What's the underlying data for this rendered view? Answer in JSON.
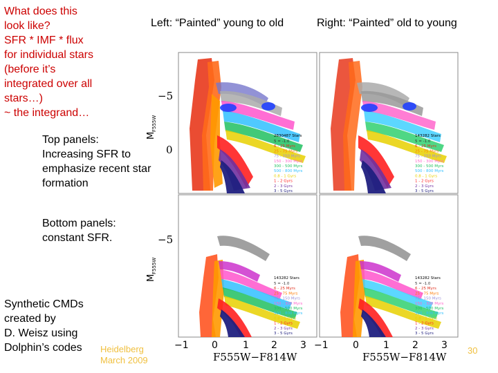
{
  "left_text": {
    "question_lines": [
      "What does this",
      "look like?",
      "SFR * IMF * flux",
      "for individual stars",
      "(before it’s",
      "integrated over all",
      "stars…)",
      "~ the integrand…"
    ],
    "top_panels_lines": [
      "Top panels:",
      "Increasing SFR to",
      "emphasize recent star",
      "formation"
    ],
    "bottom_panels_lines": [
      "Bottom panels:",
      "constant SFR."
    ],
    "credit_lines": [
      "Synthetic CMDs",
      "created by",
      "D. Weisz using",
      "Dolphin’s codes"
    ]
  },
  "headings": {
    "left": "Left: “Painted” young to old",
    "right": "Right: “Painted” old to young"
  },
  "footer": {
    "line1": "Heidelberg",
    "line2": "March 2009",
    "page_number": "30"
  },
  "figure": {
    "y_axis_label": "M",
    "y_axis_sub": "F555W",
    "y_ticks": [
      "−5",
      "0",
      "−5"
    ],
    "x_ticks": [
      "−1",
      "0",
      "1",
      "2",
      "3",
      "−1",
      "0",
      "1",
      "2",
      "3"
    ],
    "x_label_left": "F555W−F814W",
    "x_label_right": "F555W−F814W",
    "panels": [
      {
        "id": "top-left",
        "star_count": "2830487 Stars"
      },
      {
        "id": "top-right",
        "star_count": "143282 Stars"
      },
      {
        "id": "bottom-left",
        "star_count": "143282 Stars"
      },
      {
        "id": "bottom-right",
        "star_count": "143282 Stars"
      }
    ],
    "legend": [
      {
        "label": "5 = -1.0",
        "color": "#333333"
      },
      {
        "label": "6 - 25 Myrs",
        "color": "#e0301e"
      },
      {
        "label": "25 - 75 Myrs",
        "color": "#ff7a00"
      },
      {
        "label": "75 - 150 Myrs",
        "color": "#9a8fd8"
      },
      {
        "label": "150 - 300 Myrs",
        "color": "#ff66cc"
      },
      {
        "label": "300 - 500 Myrs",
        "color": "#20c060"
      },
      {
        "label": "500 - 800 Myrs",
        "color": "#30c0ff"
      },
      {
        "label": "0.8 - 1 Gyrs",
        "color": "#e8d000"
      },
      {
        "label": "1 - 2 Gyrs",
        "color": "#ff2020"
      },
      {
        "label": "2 - 3 Gyrs",
        "color": "#7030a0"
      },
      {
        "label": "3 - 5 Gyrs",
        "color": "#202080"
      }
    ]
  }
}
